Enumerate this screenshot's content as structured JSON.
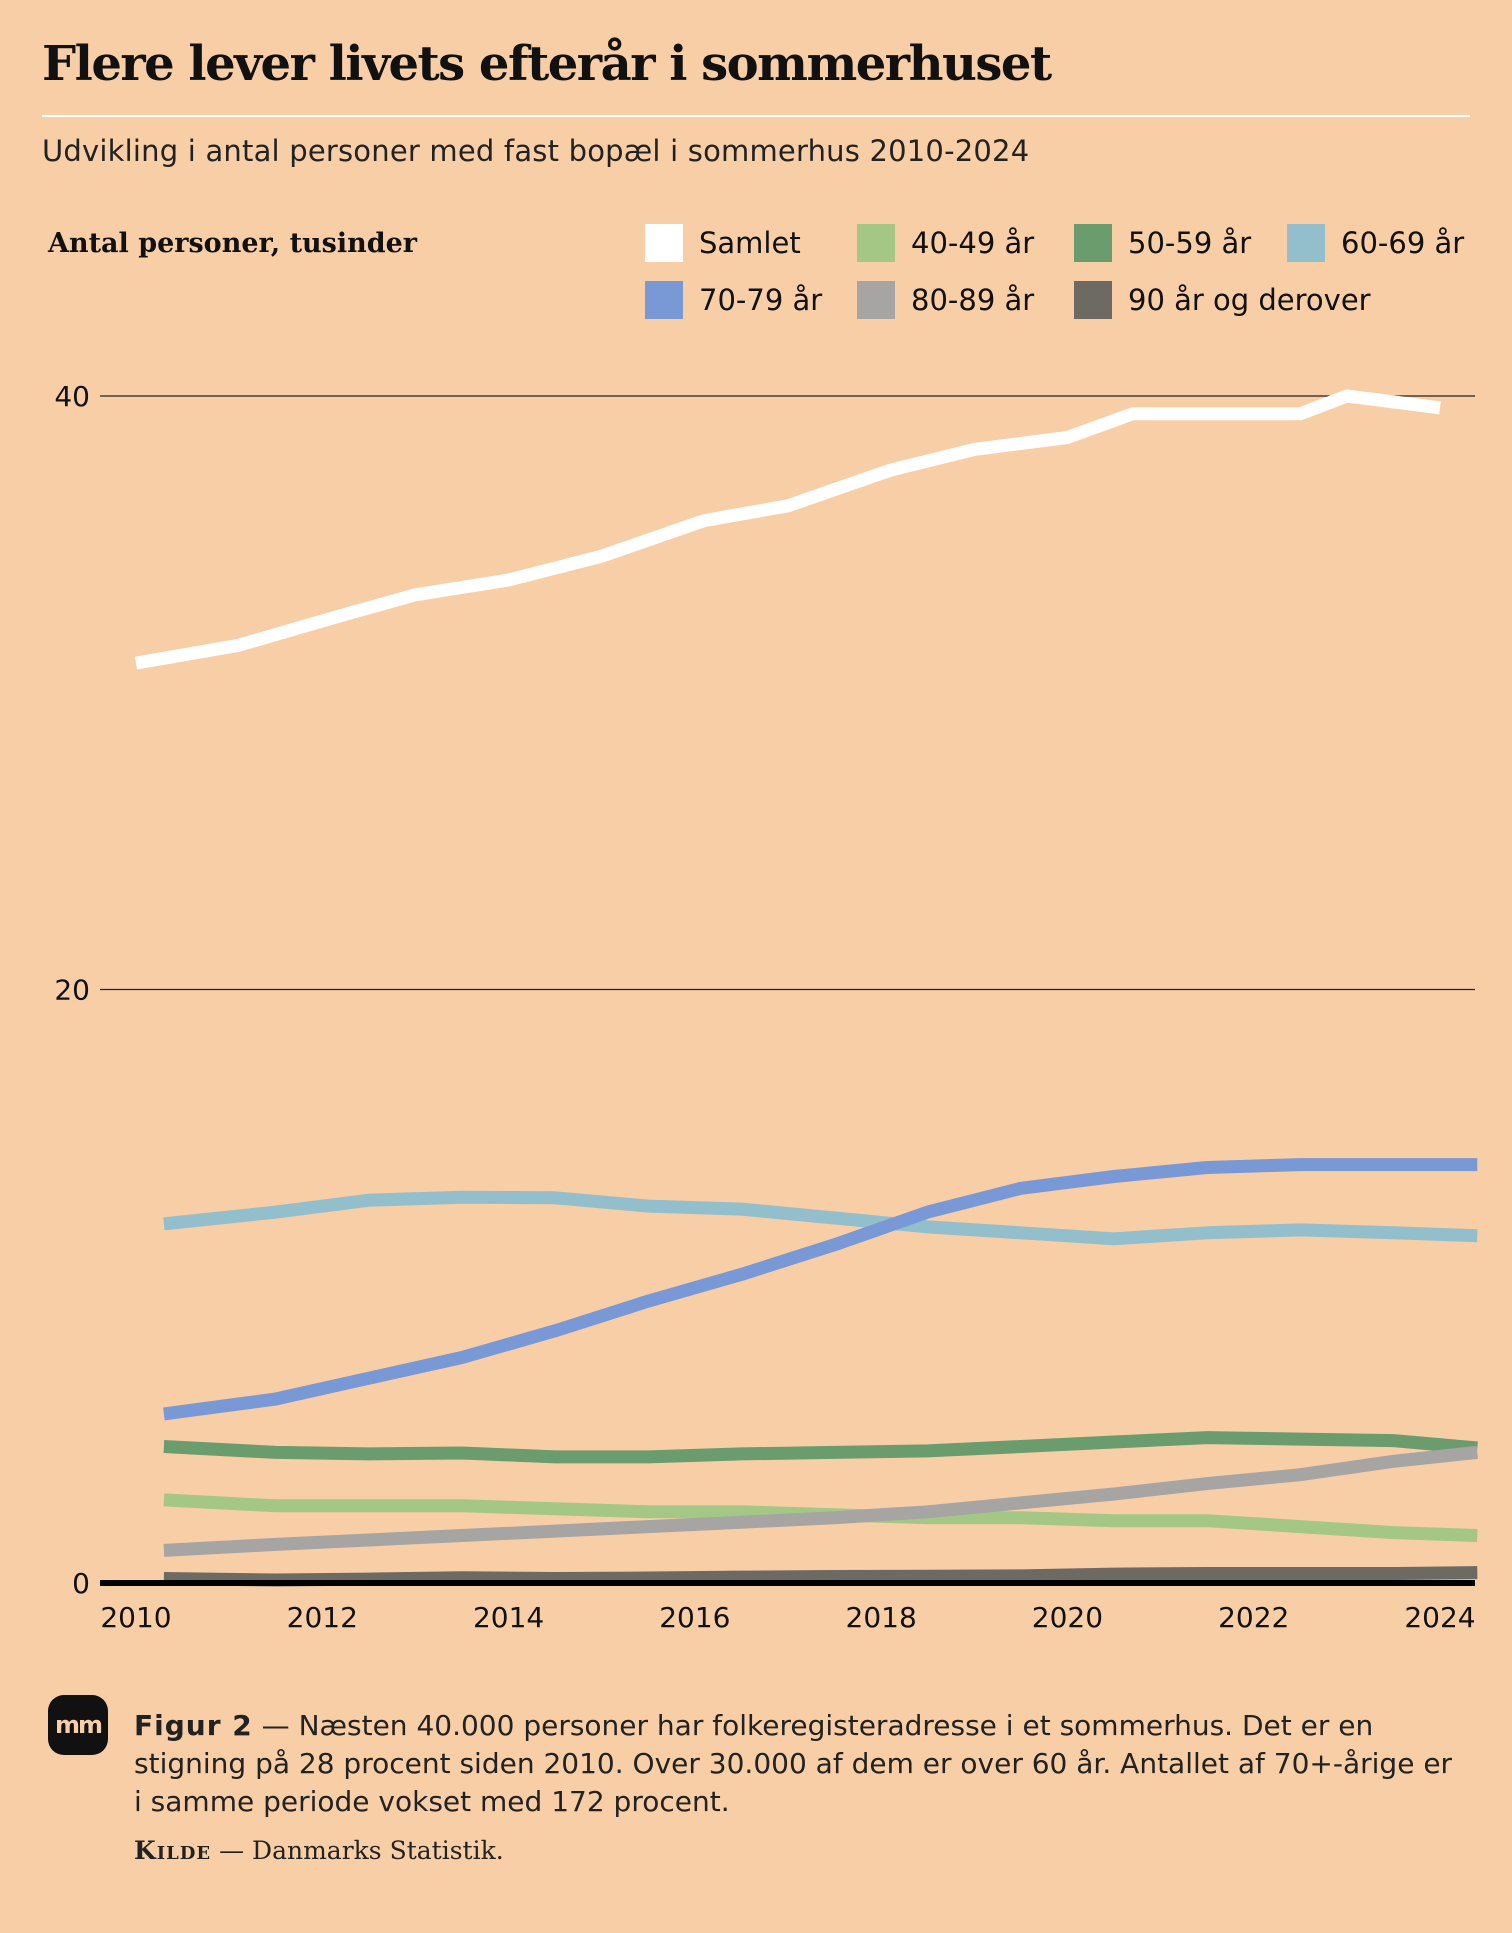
{
  "title": "Flere lever livets efterår i sommerhuset",
  "subtitle": "Udvikling i antal personer med fast bopæl i sommerhus 2010-2024",
  "unit_label": "Antal personer, tusinder",
  "caption": {
    "figure_label": "Figur 2",
    "text": "Næsten 40.000 personer har folkeregisteradresse i et sommerhus. Det er en stigning på 28 procent siden 2010. Over 30.000 af dem er over 60 år. Antallet af 70+-årige er i samme periode vokset med 172 procent."
  },
  "source": {
    "label": "Kilde",
    "text": "Danmarks Statistik."
  },
  "logo_text": "mm",
  "chart_data": {
    "type": "line",
    "ylim": [
      0,
      40
    ],
    "yticks": [
      0,
      20,
      40
    ],
    "xlim": [
      2010,
      2024
    ],
    "xticks": [
      2010,
      2012,
      2014,
      2016,
      2018,
      2020,
      2022,
      2024
    ],
    "grid": true,
    "legend_position": "top-right",
    "series": [
      {
        "name": "Samlet",
        "color": "#ffffff",
        "x": [
          2010.0,
          2011.1,
          2012.2,
          2013.0,
          2014.0,
          2015.0,
          2016.1,
          2017.0,
          2018.1,
          2019.0,
          2020.0,
          2020.7,
          2021.5,
          2022.5,
          2023.0,
          2023.5,
          2024.0
        ],
        "values": [
          31.0,
          31.6,
          32.6,
          33.3,
          33.8,
          34.6,
          35.8,
          36.3,
          37.5,
          38.2,
          38.6,
          39.4,
          39.4,
          39.4,
          40.0,
          39.8,
          39.6
        ]
      },
      {
        "name": "40-49 år",
        "color": "#a5c785",
        "x": [
          2010.3,
          2011.5,
          2012.5,
          2013.5,
          2014.5,
          2015.5,
          2016.5,
          2017.5,
          2018.5,
          2019.5,
          2020.5,
          2021.5,
          2022.5,
          2023.5,
          2024.4
        ],
        "values": [
          2.8,
          2.6,
          2.6,
          2.6,
          2.5,
          2.4,
          2.4,
          2.3,
          2.2,
          2.2,
          2.1,
          2.1,
          1.9,
          1.7,
          1.6
        ]
      },
      {
        "name": "50-59 år",
        "color": "#6a9c6d",
        "x": [
          2010.3,
          2011.5,
          2012.5,
          2013.5,
          2014.5,
          2015.5,
          2016.5,
          2017.5,
          2018.5,
          2019.5,
          2020.5,
          2021.5,
          2022.5,
          2023.5,
          2024.4
        ],
        "values": [
          4.6,
          4.4,
          4.35,
          4.38,
          4.25,
          4.25,
          4.35,
          4.4,
          4.45,
          4.6,
          4.75,
          4.9,
          4.85,
          4.8,
          4.55
        ]
      },
      {
        "name": "60-69 år",
        "color": "#92bfcb",
        "x": [
          2010.3,
          2011.5,
          2012.5,
          2013.5,
          2014.5,
          2015.5,
          2016.5,
          2017.5,
          2018.5,
          2019.5,
          2020.5,
          2021.5,
          2022.5,
          2023.5,
          2024.4
        ],
        "values": [
          12.1,
          12.5,
          12.9,
          13.0,
          12.98,
          12.7,
          12.6,
          12.3,
          12.0,
          11.8,
          11.6,
          11.8,
          11.9,
          11.8,
          11.7
        ]
      },
      {
        "name": "70-79 år",
        "color": "#7898d6",
        "x": [
          2010.3,
          2011.5,
          2012.5,
          2013.5,
          2014.5,
          2015.5,
          2016.5,
          2017.5,
          2018.5,
          2019.5,
          2020.5,
          2021.5,
          2022.5,
          2023.5,
          2024.4
        ],
        "values": [
          5.7,
          6.2,
          6.9,
          7.6,
          8.5,
          9.5,
          10.4,
          11.4,
          12.5,
          13.3,
          13.7,
          14.0,
          14.1,
          14.1,
          14.1
        ]
      },
      {
        "name": "80-89 år",
        "color": "#a7a4a4",
        "x": [
          2010.3,
          2011.5,
          2012.5,
          2013.5,
          2014.5,
          2015.5,
          2016.5,
          2017.5,
          2018.5,
          2019.5,
          2020.5,
          2021.5,
          2022.5,
          2023.5,
          2024.4
        ],
        "values": [
          1.1,
          1.3,
          1.45,
          1.6,
          1.75,
          1.9,
          2.05,
          2.2,
          2.4,
          2.7,
          3.0,
          3.35,
          3.65,
          4.1,
          4.4
        ]
      },
      {
        "name": "90 år og derover",
        "color": "#6d6a63",
        "x": [
          2010.3,
          2011.5,
          2012.5,
          2013.5,
          2014.5,
          2015.5,
          2016.5,
          2017.5,
          2018.5,
          2019.5,
          2020.5,
          2021.5,
          2022.5,
          2023.5,
          2024.4
        ],
        "values": [
          0.15,
          0.1,
          0.13,
          0.18,
          0.15,
          0.17,
          0.2,
          0.22,
          0.23,
          0.24,
          0.3,
          0.32,
          0.32,
          0.32,
          0.35
        ]
      }
    ]
  }
}
